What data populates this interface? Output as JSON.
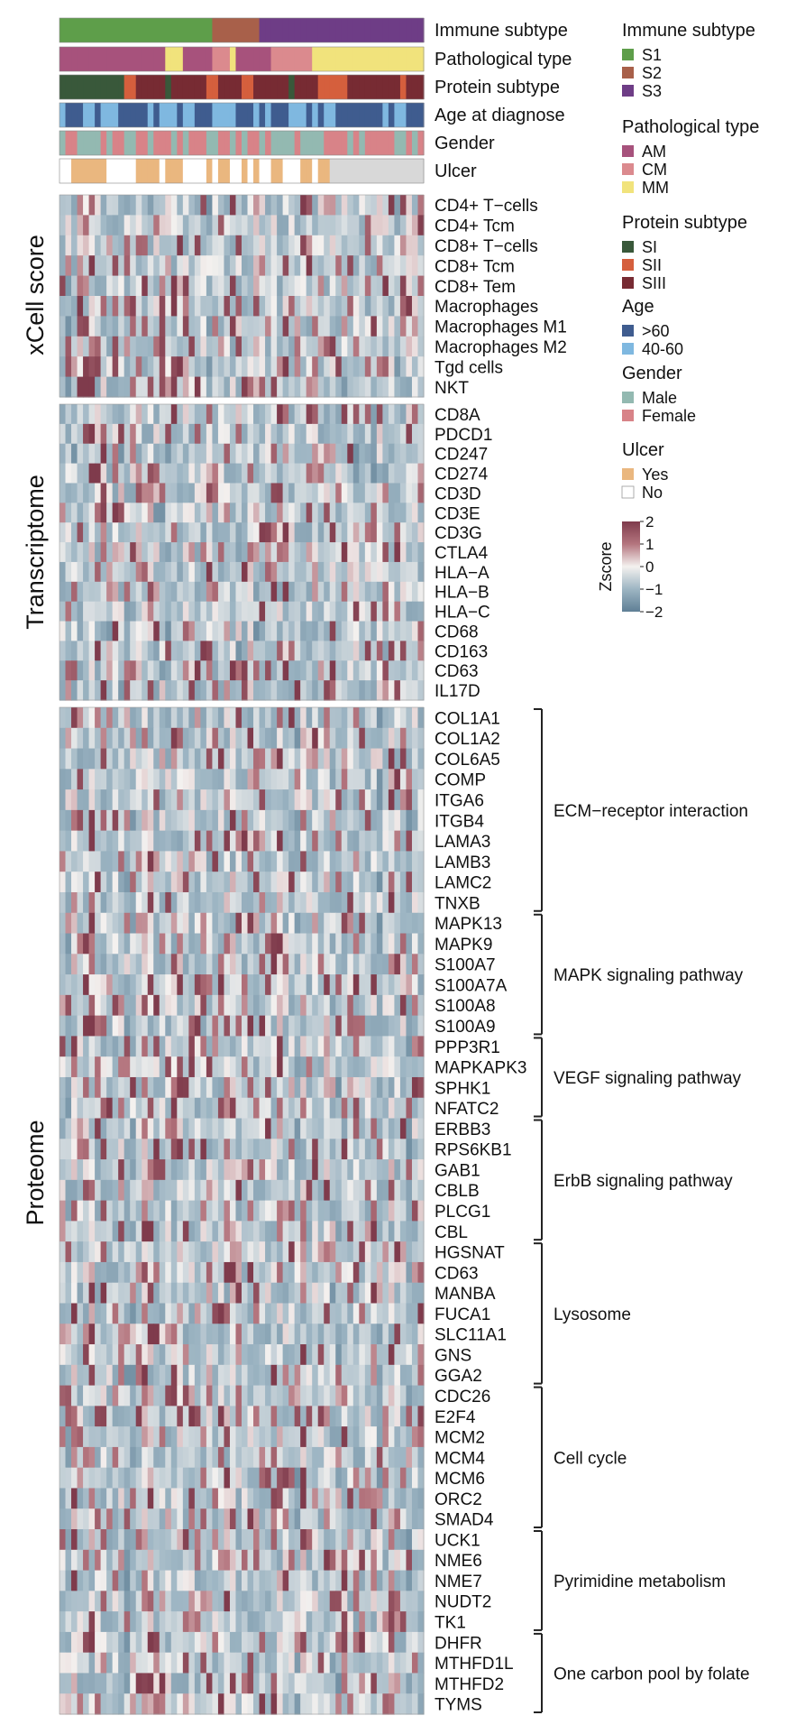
{
  "chart_data": {
    "type": "heatmap",
    "n_samples": 62,
    "annotation_tracks": [
      {
        "label": "Immune subtype",
        "key": "immune",
        "segments": [
          {
            "value": "S1",
            "count": 26
          },
          {
            "value": "S2",
            "count": 8
          },
          {
            "value": "S3",
            "count": 28
          }
        ]
      },
      {
        "label": "Pathological type",
        "key": "path",
        "segments": [
          {
            "value": "AM",
            "count": 18
          },
          {
            "value": "MM",
            "count": 3
          },
          {
            "value": "AM",
            "count": 5
          },
          {
            "value": "CM",
            "count": 3
          },
          {
            "value": "MM",
            "count": 1
          },
          {
            "value": "AM",
            "count": 6
          },
          {
            "value": "CM",
            "count": 7
          },
          {
            "value": "MM",
            "count": 19
          }
        ]
      },
      {
        "label": "Protein subtype",
        "key": "protein",
        "segments": [
          {
            "value": "SI",
            "count": 11
          },
          {
            "value": "SII",
            "count": 2
          },
          {
            "value": "SIII",
            "count": 5
          },
          {
            "value": "SI",
            "count": 1
          },
          {
            "value": "SIII",
            "count": 6
          },
          {
            "value": "SII",
            "count": 2
          },
          {
            "value": "SIII",
            "count": 4
          },
          {
            "value": "SII",
            "count": 2
          },
          {
            "value": "SIII",
            "count": 6
          },
          {
            "value": "SI",
            "count": 1
          },
          {
            "value": "SIII",
            "count": 4
          },
          {
            "value": "SII",
            "count": 5
          },
          {
            "value": "SIII",
            "count": 9
          },
          {
            "value": "SII",
            "count": 1
          },
          {
            "value": "SIII",
            "count": 3
          }
        ]
      },
      {
        "label": "Age at diagnose",
        "key": "age"
      },
      {
        "label": "Gender",
        "key": "gender"
      },
      {
        "label": "Ulcer",
        "key": "ulcer"
      }
    ],
    "heatmap_blocks": [
      {
        "section": "xCell score",
        "rows": [
          "CD4+ T−cells",
          "CD4+ Tcm",
          "CD8+ T−cells",
          "CD8+ Tcm",
          "CD8+ Tem",
          "Macrophages",
          "Macrophages M1",
          "Macrophages M2",
          "Tgd cells",
          "NKT"
        ]
      },
      {
        "section": "Transcriptome",
        "rows": [
          "CD8A",
          "PDCD1",
          "CD247",
          "CD274",
          "CD3D",
          "CD3E",
          "CD3G",
          "CTLA4",
          "HLA−A",
          "HLA−B",
          "HLA−C",
          "CD68",
          "CD163",
          "CD63",
          "IL17D"
        ]
      },
      {
        "section": "Proteome",
        "rows": [
          "COL1A1",
          "COL1A2",
          "COL6A5",
          "COMP",
          "ITGA6",
          "ITGB4",
          "LAMA3",
          "LAMB3",
          "LAMC2",
          "TNXB",
          "MAPK13",
          "MAPK9",
          "S100A7",
          "S100A7A",
          "S100A8",
          "S100A9",
          "PPP3R1",
          "MAPKAPK3",
          "SPHK1",
          "NFATC2",
          "ERBB3",
          "RPS6KB1",
          "GAB1",
          "CBLB",
          "PLCG1",
          "CBL",
          "HGSNAT",
          "CD63",
          "MANBA",
          "FUCA1",
          "SLC11A1",
          "GNS",
          "GGA2",
          "CDC26",
          "E2F4",
          "MCM2",
          "MCM4",
          "MCM6",
          "ORC2",
          "SMAD4",
          "UCK1",
          "NME6",
          "NME7",
          "NUDT2",
          "TK1",
          "DHFR",
          "MTHFD1L",
          "MTHFD2",
          "TYMS"
        ]
      }
    ],
    "pathway_groups": [
      {
        "label": "ECM−receptor interaction",
        "start": 0,
        "end": 9
      },
      {
        "label": "MAPK signaling pathway",
        "start": 10,
        "end": 15
      },
      {
        "label": "VEGF signaling pathway",
        "start": 16,
        "end": 19
      },
      {
        "label": "ErbB signaling pathway",
        "start": 20,
        "end": 25
      },
      {
        "label": "Lysosome",
        "start": 26,
        "end": 32
      },
      {
        "label": "Cell cycle",
        "start": 33,
        "end": 39
      },
      {
        "label": "Pyrimidine metabolism",
        "start": 40,
        "end": 44
      },
      {
        "label": "One carbon pool by folate",
        "start": 45,
        "end": 48
      }
    ],
    "legends": [
      {
        "title": "Immune subtype",
        "items": [
          {
            "label": "S1",
            "color": "#5e9e4a"
          },
          {
            "label": "S2",
            "color": "#a8604a"
          },
          {
            "label": "S3",
            "color": "#6e3d86"
          }
        ]
      },
      {
        "title": "Pathological type",
        "items": [
          {
            "label": "AM",
            "color": "#a7527c"
          },
          {
            "label": "CM",
            "color": "#db8a8e"
          },
          {
            "label": "MM",
            "color": "#f1e37c"
          }
        ]
      },
      {
        "title": "Protein subtype",
        "items": [
          {
            "label": "SI",
            "color": "#39583a"
          },
          {
            "label": "SII",
            "color": "#d55f3d"
          },
          {
            "label": "SIII",
            "color": "#772b33"
          }
        ]
      },
      {
        "title": "Age",
        "items": [
          {
            "label": ">60",
            "color": "#3f5c8f"
          },
          {
            "label": "40-60",
            "color": "#7fb8e0"
          }
        ]
      },
      {
        "title": "Gender",
        "items": [
          {
            "label": "Male",
            "color": "#93b9b1"
          },
          {
            "label": "Female",
            "color": "#d88388"
          }
        ]
      },
      {
        "title": "Ulcer",
        "items": [
          {
            "label": "Yes",
            "color": "#eab77f"
          },
          {
            "label": "No",
            "color": "#ffffff"
          }
        ]
      }
    ],
    "colorbar": {
      "title": "Zscore",
      "range": [
        -2,
        2
      ],
      "ticks": [
        "2",
        "1",
        "0",
        "−1",
        "−2"
      ],
      "colors": [
        "#7f3b4c",
        "#b4757e",
        "#f4f1ef",
        "#9db5c3",
        "#5f7f95"
      ]
    }
  }
}
